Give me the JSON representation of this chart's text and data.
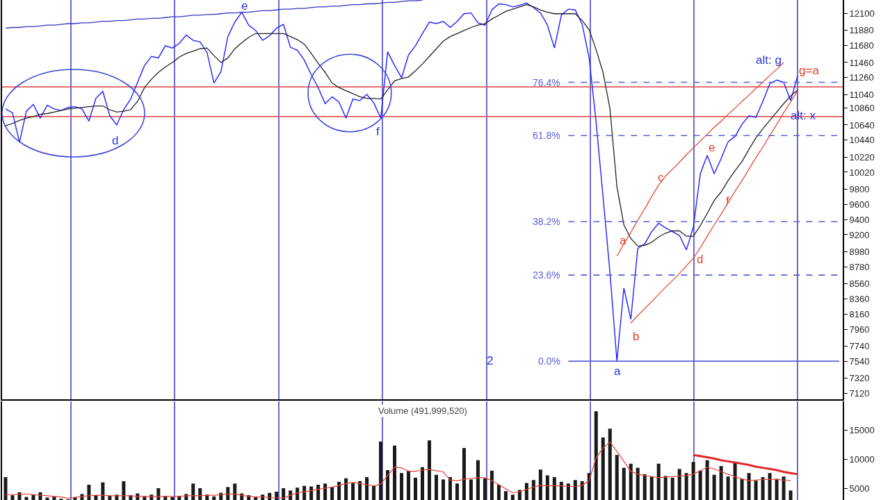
{
  "chart_data": [
    {
      "type": "line",
      "categories": [
        null,
        null,
        null,
        null,
        null,
        null,
        null,
        null,
        null,
        null,
        null,
        null,
        null,
        null,
        null,
        null,
        null,
        null,
        null,
        null,
        null,
        null,
        null,
        null,
        null,
        null,
        null,
        null,
        null,
        null,
        null,
        null,
        null,
        null,
        null,
        null,
        null,
        null,
        null,
        null,
        null,
        null,
        null,
        null,
        null,
        null,
        null,
        null,
        null,
        null,
        null,
        null,
        null,
        null,
        null,
        null,
        null,
        null,
        null,
        null,
        null,
        null,
        null,
        null,
        null,
        null,
        null,
        null,
        null,
        null,
        null,
        null,
        null,
        null,
        null,
        null,
        null,
        null,
        null,
        null,
        null,
        null,
        null,
        null,
        null,
        null,
        null,
        null,
        null,
        null,
        null,
        null,
        null,
        null,
        null,
        null,
        null,
        null,
        null,
        null,
        null,
        null,
        null,
        null,
        null,
        null,
        null,
        null,
        null,
        null,
        null,
        null,
        null,
        null,
        null,
        null,
        null,
        null,
        null,
        null,
        null
      ],
      "ylim": [
        7040,
        12280
      ],
      "yticks": [
        7120,
        7320,
        7540,
        7740,
        7960,
        8160,
        8360,
        8560,
        8780,
        8980,
        9200,
        9400,
        9600,
        9800,
        10020,
        10220,
        10440,
        10640,
        10860,
        11040,
        11260,
        11460,
        11680,
        11880,
        12100
      ],
      "tick_labels": "y",
      "series": [
        {
          "color": "#1f1fff",
          "values": [
            10850,
            10800,
            10410,
            10820,
            10910,
            10730,
            10900,
            10850,
            10830,
            10870,
            10880,
            10850,
            10690,
            10990,
            11080,
            10760,
            10640,
            10840,
            10980,
            11200,
            11420,
            11540,
            11520,
            11680,
            11650,
            11710,
            11820,
            11750,
            11730,
            11590,
            11190,
            11340,
            11800,
            11990,
            12120,
            11950,
            11880,
            11750,
            11810,
            11910,
            11960,
            11660,
            11620,
            11490,
            11300,
            11130,
            10920,
            11010,
            10940,
            10730,
            10980,
            10960,
            11040,
            10930,
            10730,
            11600,
            11420,
            11260,
            11560,
            11680,
            11840,
            11990,
            11970,
            12000,
            11920,
            12000,
            12100,
            12110,
            11980,
            11950,
            12150,
            12230,
            12220,
            12190,
            12210,
            12240,
            12180,
            12110,
            11950,
            11650,
            12080,
            12160,
            12150,
            11960,
            11520,
            10680,
            9700,
            8700,
            7540,
            8500,
            8090,
            9020,
            9080,
            9240,
            9350,
            9290,
            9240,
            9190,
            9000,
            9300,
            10000,
            10240,
            10000,
            10200,
            10420,
            10490,
            10650,
            10760,
            10740,
            10950,
            11180,
            11230,
            11200,
            10960,
            11280,
            null,
            null,
            null,
            null,
            null,
            null
          ]
        },
        {
          "color": "#222222",
          "values": [
            10630,
            10660,
            10700,
            10730,
            10750,
            10780,
            10790,
            10810,
            10830,
            10850,
            10860,
            10870,
            10880,
            10890,
            10890,
            10840,
            10810,
            10820,
            10840,
            10950,
            11130,
            11240,
            11330,
            11400,
            11460,
            11530,
            11580,
            11610,
            11640,
            11650,
            11550,
            11460,
            11520,
            11640,
            11720,
            11790,
            11840,
            11840,
            11840,
            11840,
            11840,
            11800,
            11760,
            11700,
            11580,
            11450,
            11330,
            11190,
            11130,
            11090,
            11050,
            11010,
            10990,
            10990,
            10980,
            11100,
            11220,
            11250,
            11270,
            11350,
            11440,
            11540,
            11640,
            11740,
            11800,
            11840,
            11880,
            11920,
            11950,
            11970,
            12030,
            12080,
            12130,
            12160,
            12190,
            12220,
            12190,
            12150,
            12120,
            12100,
            12100,
            12100,
            12100,
            12010,
            11890,
            11630,
            11330,
            10850,
            9830,
            9330,
            9150,
            9050,
            9060,
            9100,
            9170,
            9220,
            9250,
            9250,
            9180,
            9180,
            9320,
            9480,
            9650,
            9760,
            9910,
            10040,
            10160,
            10320,
            10470,
            10590,
            10700,
            10810,
            10920,
            11020,
            11100,
            null,
            null,
            null,
            null,
            null,
            null
          ]
        },
        {
          "color": "#3535c0",
          "values": [
            11910,
            11920,
            11920,
            11930,
            11930,
            11940,
            11950,
            11950,
            11960,
            11970,
            11970,
            11980,
            11980,
            11990,
            12000,
            12000,
            12010,
            12010,
            12020,
            12030,
            12030,
            12040,
            12040,
            12050,
            12060,
            12060,
            12070,
            12080,
            12080,
            12090,
            12090,
            12100,
            12110,
            12110,
            12120,
            12120,
            12130,
            12140,
            12140,
            12150,
            12160,
            12160,
            12170,
            12170,
            12180,
            12190,
            12190,
            12200,
            12200,
            12210,
            12220,
            12220,
            12230,
            12230,
            12240,
            12250,
            12250,
            12260,
            12270,
            12270,
            12280,
            null,
            null,
            null,
            null,
            null,
            null,
            null,
            null,
            null,
            null,
            null,
            null,
            null,
            null,
            null,
            null,
            null,
            null,
            null,
            null,
            null,
            null,
            null,
            null,
            null,
            null,
            null,
            null,
            null,
            null,
            null,
            null,
            null,
            null,
            null,
            null,
            null,
            null,
            null,
            null,
            null,
            null,
            null,
            null,
            null,
            null,
            null,
            null,
            null,
            null,
            null,
            null,
            null,
            null,
            null,
            null,
            null,
            null,
            null,
            null
          ]
        },
        {
          "color": "#e0402a",
          "values": [
            null,
            null,
            null,
            null,
            null,
            null,
            null,
            null,
            null,
            null,
            null,
            null,
            null,
            null,
            null,
            null,
            null,
            null,
            null,
            null,
            null,
            null,
            null,
            null,
            null,
            null,
            null,
            null,
            null,
            null,
            null,
            null,
            null,
            null,
            null,
            null,
            null,
            null,
            null,
            null,
            null,
            null,
            null,
            null,
            null,
            null,
            null,
            null,
            null,
            null,
            null,
            null,
            null,
            null,
            null,
            null,
            null,
            null,
            null,
            null,
            null,
            null,
            null,
            null,
            null,
            null,
            null,
            null,
            null,
            null,
            null,
            null,
            null,
            null,
            null,
            null,
            null,
            null,
            null,
            null,
            null,
            null,
            null,
            null,
            null,
            null,
            null,
            null,
            8920,
            9080,
            9230,
            9390,
            9540,
            9700,
            9850,
            9970,
            10060,
            10150,
            10250,
            10340,
            10430,
            10520,
            10610,
            10690,
            10780,
            10860,
            10950,
            11030,
            11120,
            11200,
            11290,
            11370,
            11460,
            null,
            null,
            null,
            null,
            null,
            null,
            null,
            null
          ]
        },
        {
          "color": "#e0402a",
          "values": [
            null,
            null,
            null,
            null,
            null,
            null,
            null,
            null,
            null,
            null,
            null,
            null,
            null,
            null,
            null,
            null,
            null,
            null,
            null,
            null,
            null,
            null,
            null,
            null,
            null,
            null,
            null,
            null,
            null,
            null,
            null,
            null,
            null,
            null,
            null,
            null,
            null,
            null,
            null,
            null,
            null,
            null,
            null,
            null,
            null,
            null,
            null,
            null,
            null,
            null,
            null,
            null,
            null,
            null,
            null,
            null,
            null,
            null,
            null,
            null,
            null,
            null,
            null,
            null,
            null,
            null,
            null,
            null,
            null,
            null,
            null,
            null,
            null,
            null,
            null,
            null,
            null,
            null,
            null,
            null,
            null,
            null,
            null,
            null,
            null,
            null,
            null,
            null,
            null,
            null,
            8040,
            8140,
            8230,
            8320,
            8420,
            8510,
            8600,
            8690,
            8790,
            8890,
            9030,
            9180,
            9330,
            9470,
            9620,
            9770,
            9910,
            10060,
            10210,
            10350,
            10500,
            10650,
            10800,
            10940,
            11090,
            null,
            null,
            null,
            null,
            null,
            null
          ]
        },
        {
          "name": "76.4%",
          "color": "#5862d6",
          "line_style": "dashed",
          "values": [
            null,
            null,
            null,
            null,
            null,
            null,
            null,
            null,
            null,
            null,
            null,
            null,
            null,
            null,
            null,
            null,
            null,
            null,
            null,
            null,
            null,
            null,
            null,
            null,
            null,
            null,
            null,
            null,
            null,
            null,
            null,
            null,
            null,
            null,
            null,
            null,
            null,
            null,
            null,
            null,
            null,
            null,
            null,
            null,
            null,
            null,
            null,
            null,
            null,
            null,
            null,
            null,
            null,
            null,
            null,
            null,
            null,
            null,
            null,
            null,
            null,
            null,
            null,
            null,
            null,
            null,
            null,
            null,
            null,
            null,
            null,
            null,
            null,
            null,
            null,
            null,
            null,
            null,
            null,
            null,
            null,
            11200,
            11200,
            11200,
            11200,
            11200,
            11200,
            11200,
            11200,
            11200,
            11200,
            11200,
            11200,
            11200,
            11200,
            11200,
            11200,
            11200,
            11200,
            11200,
            11200,
            11200,
            11200,
            11200,
            11200,
            11200,
            11200,
            11200,
            11200,
            11200,
            11200,
            11200,
            11200,
            11200,
            11200,
            11200,
            11200,
            11200,
            11200,
            11200,
            11200
          ]
        },
        {
          "name": "61.8%",
          "color": "#5862d6",
          "line_style": "dashed",
          "values": [
            null,
            null,
            null,
            null,
            null,
            null,
            null,
            null,
            null,
            null,
            null,
            null,
            null,
            null,
            null,
            null,
            null,
            null,
            null,
            null,
            null,
            null,
            null,
            null,
            null,
            null,
            null,
            null,
            null,
            null,
            null,
            null,
            null,
            null,
            null,
            null,
            null,
            null,
            null,
            null,
            null,
            null,
            null,
            null,
            null,
            null,
            null,
            null,
            null,
            null,
            null,
            null,
            null,
            null,
            null,
            null,
            null,
            null,
            null,
            null,
            null,
            null,
            null,
            null,
            null,
            null,
            null,
            null,
            null,
            null,
            null,
            null,
            null,
            null,
            null,
            null,
            null,
            null,
            null,
            null,
            null,
            10500,
            10500,
            10500,
            10500,
            10500,
            10500,
            10500,
            10500,
            10500,
            10500,
            10500,
            10500,
            10500,
            10500,
            10500,
            10500,
            10500,
            10500,
            10500,
            10500,
            10500,
            10500,
            10500,
            10500,
            10500,
            10500,
            10500,
            10500,
            10500,
            10500,
            10500,
            10500,
            10500,
            10500,
            10500,
            10500,
            10500,
            10500,
            10500,
            10500
          ]
        },
        {
          "name": "38.2%",
          "color": "#5862d6",
          "line_style": "dashed",
          "values": [
            null,
            null,
            null,
            null,
            null,
            null,
            null,
            null,
            null,
            null,
            null,
            null,
            null,
            null,
            null,
            null,
            null,
            null,
            null,
            null,
            null,
            null,
            null,
            null,
            null,
            null,
            null,
            null,
            null,
            null,
            null,
            null,
            null,
            null,
            null,
            null,
            null,
            null,
            null,
            null,
            null,
            null,
            null,
            null,
            null,
            null,
            null,
            null,
            null,
            null,
            null,
            null,
            null,
            null,
            null,
            null,
            null,
            null,
            null,
            null,
            null,
            null,
            null,
            null,
            null,
            null,
            null,
            null,
            null,
            null,
            null,
            null,
            null,
            null,
            null,
            null,
            null,
            null,
            null,
            null,
            null,
            9370,
            9370,
            9370,
            9370,
            9370,
            9370,
            9370,
            9370,
            9370,
            9370,
            9370,
            9370,
            9370,
            9370,
            9370,
            9370,
            9370,
            9370,
            9370,
            9370,
            9370,
            9370,
            9370,
            9370,
            9370,
            9370,
            9370,
            9370,
            9370,
            9370,
            9370,
            9370,
            9370,
            9370,
            9370,
            9370,
            9370,
            9370,
            9370,
            9370
          ]
        },
        {
          "name": "23.6%",
          "color": "#5862d6",
          "line_style": "dashed",
          "values": [
            null,
            null,
            null,
            null,
            null,
            null,
            null,
            null,
            null,
            null,
            null,
            null,
            null,
            null,
            null,
            null,
            null,
            null,
            null,
            null,
            null,
            null,
            null,
            null,
            null,
            null,
            null,
            null,
            null,
            null,
            null,
            null,
            null,
            null,
            null,
            null,
            null,
            null,
            null,
            null,
            null,
            null,
            null,
            null,
            null,
            null,
            null,
            null,
            null,
            null,
            null,
            null,
            null,
            null,
            null,
            null,
            null,
            null,
            null,
            null,
            null,
            null,
            null,
            null,
            null,
            null,
            null,
            null,
            null,
            null,
            null,
            null,
            null,
            null,
            null,
            null,
            null,
            null,
            null,
            null,
            null,
            8670,
            8670,
            8670,
            8670,
            8670,
            8670,
            8670,
            8670,
            8670,
            8670,
            8670,
            8670,
            8670,
            8670,
            8670,
            8670,
            8670,
            8670,
            8670,
            8670,
            8670,
            8670,
            8670,
            8670,
            8670,
            8670,
            8670,
            8670,
            8670,
            8670,
            8670,
            8670,
            8670,
            8670,
            8670,
            8670,
            8670,
            8670,
            8670,
            8670
          ]
        },
        {
          "name": "0.0%",
          "color": "#5862d6",
          "values": [
            null,
            null,
            null,
            null,
            null,
            null,
            null,
            null,
            null,
            null,
            null,
            null,
            null,
            null,
            null,
            null,
            null,
            null,
            null,
            null,
            null,
            null,
            null,
            null,
            null,
            null,
            null,
            null,
            null,
            null,
            null,
            null,
            null,
            null,
            null,
            null,
            null,
            null,
            null,
            null,
            null,
            null,
            null,
            null,
            null,
            null,
            null,
            null,
            null,
            null,
            null,
            null,
            null,
            null,
            null,
            null,
            null,
            null,
            null,
            null,
            null,
            null,
            null,
            null,
            null,
            null,
            null,
            null,
            null,
            null,
            null,
            null,
            null,
            null,
            null,
            null,
            null,
            null,
            null,
            null,
            null,
            7540,
            7540,
            7540,
            7540,
            7540,
            7540,
            7540,
            7540,
            7540,
            7540,
            7540,
            7540,
            7540,
            7540,
            7540,
            7540,
            7540,
            7540,
            7540,
            7540,
            7540,
            7540,
            7540,
            7540,
            7540,
            7540,
            7540,
            7540,
            7540,
            7540,
            7540,
            7540,
            7540,
            7540,
            7540,
            7540,
            7540,
            7540,
            7540,
            7540
          ]
        }
      ],
      "ref_lines": [
        {
          "axis": "y",
          "value": 11140,
          "color": "#e05a5a"
        },
        {
          "axis": "y",
          "value": 10750,
          "color": "#e05a5a"
        }
      ],
      "annotations": [
        "d",
        "e",
        "f",
        "2",
        "a",
        "b",
        "a",
        "c",
        "d",
        "e",
        "f",
        "alt: g",
        "g=a",
        "alt: x"
      ]
    },
    {
      "type": "bar",
      "title": "Volume (491,999,520)",
      "categories": [
        null,
        null,
        null,
        null,
        null,
        null,
        null,
        null,
        null,
        null,
        null,
        null,
        null,
        null,
        null,
        null,
        null,
        null,
        null,
        null,
        null,
        null,
        null,
        null,
        null,
        null,
        null,
        null,
        null,
        null,
        null,
        null,
        null,
        null,
        null,
        null,
        null,
        null,
        null,
        null,
        null,
        null,
        null,
        null,
        null,
        null,
        null,
        null,
        null,
        null,
        null,
        null,
        null,
        null,
        null,
        null,
        null,
        null,
        null,
        null,
        null,
        null,
        null,
        null,
        null,
        null,
        null,
        null,
        null,
        null,
        null,
        null,
        null,
        null,
        null,
        null,
        null,
        null,
        null,
        null,
        null,
        null,
        null,
        null,
        null,
        null,
        null,
        null,
        null,
        null,
        null,
        null,
        null,
        null,
        null,
        null,
        null,
        null,
        null,
        null,
        null,
        null,
        null,
        null,
        null,
        null,
        null,
        null,
        null,
        null,
        null,
        null,
        null,
        null,
        null,
        null,
        null,
        null,
        null,
        null,
        null
      ],
      "ylim": [
        2980,
        19880
      ],
      "yticks": [
        5000,
        10000,
        15000
      ],
      "tick_labels": "y",
      "series": [
        {
          "color": "#1a1a1a",
          "values": [
            6900,
            3800,
            4300,
            3500,
            3900,
            4300,
            3400,
            3600,
            3200,
            3100,
            3500,
            4000,
            5600,
            3800,
            6000,
            3700,
            3900,
            6200,
            3800,
            4100,
            3600,
            3900,
            5000,
            3700,
            3500,
            3700,
            4000,
            5800,
            5000,
            3900,
            3600,
            4200,
            5200,
            5800,
            4100,
            3800,
            3500,
            3900,
            4200,
            4400,
            5000,
            4600,
            5100,
            5400,
            5300,
            5600,
            5800,
            5200,
            6100,
            6700,
            5900,
            6200,
            6900,
            5400,
            13000,
            8100,
            12300,
            7600,
            8000,
            6800,
            8600,
            13200,
            7300,
            6500,
            6900,
            5800,
            11900,
            6500,
            9800,
            6700,
            8000,
            5600,
            4500,
            3900,
            4700,
            5900,
            6400,
            8200,
            7200,
            6900,
            6100,
            5800,
            6400,
            6200,
            7600,
            18200,
            13700,
            15200,
            10700,
            8500,
            9200,
            8500,
            7400,
            7000,
            9200,
            7100,
            6800,
            8300,
            7600,
            9500,
            8000,
            9800,
            7300,
            8800,
            7000,
            9400,
            6600,
            7600,
            6300,
            6900,
            7600,
            6600,
            7000,
            4600,
            null,
            null,
            null,
            null,
            null,
            null,
            null
          ]
        },
        {
          "type": "line",
          "color": "#e8413a",
          "values": [
            3900,
            3900,
            4000,
            4000,
            3900,
            3800,
            3700,
            3600,
            3500,
            3300,
            3400,
            3600,
            3700,
            3800,
            3800,
            3700,
            3700,
            3700,
            3700,
            3600,
            3600,
            3600,
            3600,
            3600,
            3600,
            3600,
            3700,
            3700,
            3700,
            3800,
            3800,
            3900,
            4000,
            4000,
            3800,
            3600,
            3500,
            3500,
            3400,
            3400,
            3300,
            3800,
            4200,
            4400,
            4600,
            4800,
            5000,
            5200,
            5500,
            5800,
            6000,
            5800,
            5600,
            5400,
            5700,
            7200,
            8600,
            8500,
            7900,
            7900,
            8100,
            8200,
            8000,
            7800,
            6400,
            6300,
            6500,
            6700,
            6800,
            6800,
            6300,
            5600,
            4900,
            4200,
            4400,
            4800,
            5200,
            5500,
            5400,
            5400,
            5400,
            5300,
            5300,
            5500,
            6300,
            10200,
            11900,
            12900,
            11300,
            9600,
            7900,
            7400,
            7200,
            7000,
            6800,
            6900,
            7000,
            7100,
            7200,
            7400,
            8000,
            8600,
            8300,
            7800,
            7400,
            7000,
            6600,
            6300,
            6400,
            6500,
            6500,
            6500,
            6400,
            6300,
            null,
            null,
            null,
            null,
            null,
            null,
            null
          ]
        },
        {
          "type": "line",
          "color": "#e02828",
          "values": [
            null,
            null,
            null,
            null,
            null,
            null,
            null,
            null,
            null,
            null,
            null,
            null,
            null,
            null,
            null,
            null,
            null,
            null,
            null,
            null,
            null,
            null,
            null,
            null,
            null,
            null,
            null,
            null,
            null,
            null,
            null,
            null,
            null,
            null,
            null,
            null,
            null,
            null,
            null,
            null,
            null,
            null,
            null,
            null,
            null,
            null,
            null,
            null,
            null,
            null,
            null,
            null,
            null,
            null,
            null,
            null,
            null,
            null,
            null,
            null,
            null,
            null,
            null,
            null,
            null,
            null,
            null,
            null,
            null,
            null,
            null,
            null,
            null,
            null,
            null,
            null,
            null,
            null,
            null,
            null,
            null,
            null,
            null,
            null,
            null,
            null,
            null,
            null,
            null,
            null,
            null,
            null,
            null,
            null,
            null,
            null,
            null,
            null,
            null,
            10700,
            10500,
            10300,
            10100,
            9800,
            9600,
            9400,
            9200,
            9000,
            8700,
            8500,
            8300,
            8100,
            7800,
            7600,
            7400,
            null,
            null,
            null,
            null,
            null,
            null
          ]
        }
      ]
    }
  ]
}
